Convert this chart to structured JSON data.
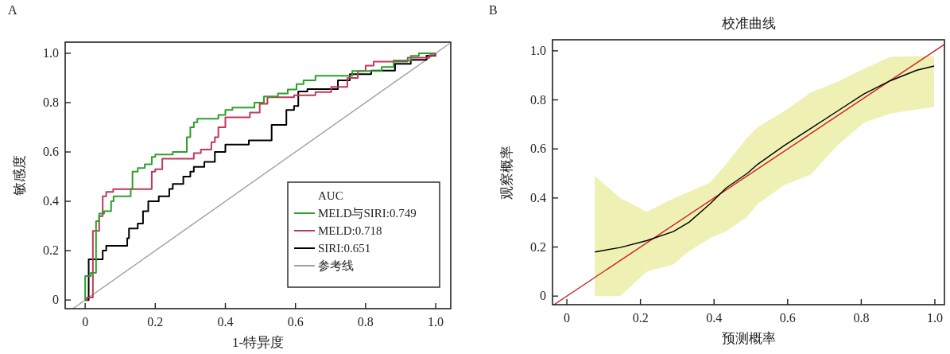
{
  "chart_data": [
    {
      "type": "step",
      "xlabel": "1-特异度",
      "ylabel": "敏感度",
      "legend_title": "AUC",
      "legend": "bottom right",
      "annotations": [
        "A"
      ],
      "xlim": [
        -0.057,
        1.043
      ],
      "ylim": [
        -0.035,
        1.045
      ],
      "xticks": [
        0,
        0.2,
        0.4,
        0.6,
        0.8,
        {
          "value": 1,
          "label": "1.0"
        }
      ],
      "yticks": [
        0,
        0.2,
        0.4,
        0.6,
        0.8,
        {
          "value": 1,
          "label": "1.0"
        }
      ],
      "series": [
        {
          "name": "MELD与SIRI:0.749",
          "color": "#2ca02c",
          "x": [
            0,
            0,
            0.016,
            0.031,
            0.04,
            0.054,
            0.074,
            0.081,
            0.13,
            0.135,
            0.15,
            0.17,
            0.19,
            0.2,
            0.25,
            0.29,
            0.3,
            0.31,
            0.32,
            0.38,
            0.4,
            0.42,
            0.483,
            0.51,
            0.55,
            0.578,
            0.603,
            0.623,
            0.657,
            0.762,
            0.846,
            0.88,
            0.929,
            0.952,
            1
          ],
          "values": [
            0,
            0.097,
            0.11,
            0.32,
            0.35,
            0.36,
            0.4,
            0.42,
            0.45,
            0.52,
            0.535,
            0.55,
            0.58,
            0.59,
            0.6,
            0.66,
            0.7,
            0.72,
            0.735,
            0.75,
            0.77,
            0.78,
            0.8,
            0.825,
            0.837,
            0.853,
            0.875,
            0.89,
            0.909,
            0.928,
            0.944,
            0.971,
            0.989,
            1,
            1
          ]
        },
        {
          "name": "MELD:0.718",
          "color": "#c0395a",
          "x": [
            0,
            0.005,
            0.022,
            0.04,
            0.05,
            0.06,
            0.08,
            0.19,
            0.2,
            0.22,
            0.31,
            0.33,
            0.36,
            0.37,
            0.38,
            0.4,
            0.47,
            0.498,
            0.52,
            0.596,
            0.657,
            0.702,
            0.748,
            0.778,
            0.8,
            0.823,
            0.92,
            0.982,
            1
          ],
          "values": [
            0,
            0.01,
            0.28,
            0.34,
            0.42,
            0.438,
            0.449,
            0.52,
            0.53,
            0.573,
            0.595,
            0.61,
            0.64,
            0.66,
            0.7,
            0.74,
            0.76,
            0.795,
            0.822,
            0.83,
            0.843,
            0.864,
            0.9,
            0.928,
            0.95,
            0.966,
            0.982,
            0.993,
            1
          ]
        },
        {
          "name": "SIRI:0.651",
          "color": "#000000",
          "x": [
            0,
            0.01,
            0.05,
            0.06,
            0.12,
            0.125,
            0.15,
            0.165,
            0.18,
            0.21,
            0.24,
            0.25,
            0.28,
            0.3,
            0.31,
            0.34,
            0.37,
            0.4,
            0.467,
            0.532,
            0.574,
            0.596,
            0.608,
            0.634,
            0.721,
            0.755,
            0.816,
            0.884,
            0.929,
            0.974,
            1
          ],
          "values": [
            0,
            0.165,
            0.2,
            0.22,
            0.25,
            0.29,
            0.31,
            0.36,
            0.4,
            0.42,
            0.45,
            0.47,
            0.5,
            0.52,
            0.54,
            0.56,
            0.6,
            0.63,
            0.647,
            0.71,
            0.77,
            0.786,
            0.845,
            0.855,
            0.89,
            0.915,
            0.93,
            0.957,
            0.973,
            0.99,
            1
          ]
        },
        {
          "name": "参考线",
          "type": "line",
          "color": "#a0a0a0",
          "x": [
            -0.035,
            1.04
          ],
          "values": [
            -0.035,
            1.04
          ]
        }
      ]
    },
    {
      "type": "line",
      "title": "校准曲线",
      "xlabel": "预测概率",
      "ylabel": "观察概率",
      "annotations": [
        "B"
      ],
      "xlim": [
        -0.039,
        1.026
      ],
      "ylim": [
        -0.035,
        1.045
      ],
      "xticks": [
        0,
        0.2,
        0.4,
        0.6,
        0.8,
        {
          "value": 1,
          "label": "1.0"
        }
      ],
      "yticks": [
        0,
        0.2,
        0.4,
        0.6,
        0.8,
        {
          "value": 1,
          "label": "1.0"
        }
      ],
      "series": [
        {
          "color": "#000000",
          "x": [
            0.076,
            0.145,
            0.217,
            0.289,
            0.332,
            0.389,
            0.433,
            0.49,
            0.519,
            0.591,
            0.663,
            0.735,
            0.807,
            0.879,
            0.951,
            0.998
          ],
          "values": [
            0.18,
            0.198,
            0.226,
            0.263,
            0.301,
            0.376,
            0.441,
            0.5,
            0.538,
            0.614,
            0.684,
            0.754,
            0.824,
            0.878,
            0.921,
            0.938
          ],
          "lower": [
            0,
            0,
            0.1,
            0.129,
            0.183,
            0.237,
            0.264,
            0.323,
            0.377,
            0.453,
            0.496,
            0.615,
            0.707,
            0.744,
            0.761,
            0.771
          ],
          "upper": [
            0.49,
            0.4,
            0.344,
            0.398,
            0.425,
            0.463,
            0.538,
            0.646,
            0.69,
            0.754,
            0.83,
            0.873,
            0.927,
            0.975,
            0.978,
            0.978
          ]
        },
        {
          "color": "#cc2222",
          "x": [
            -0.035,
            1.025
          ],
          "values": [
            -0.035,
            1.025
          ]
        }
      ]
    }
  ]
}
